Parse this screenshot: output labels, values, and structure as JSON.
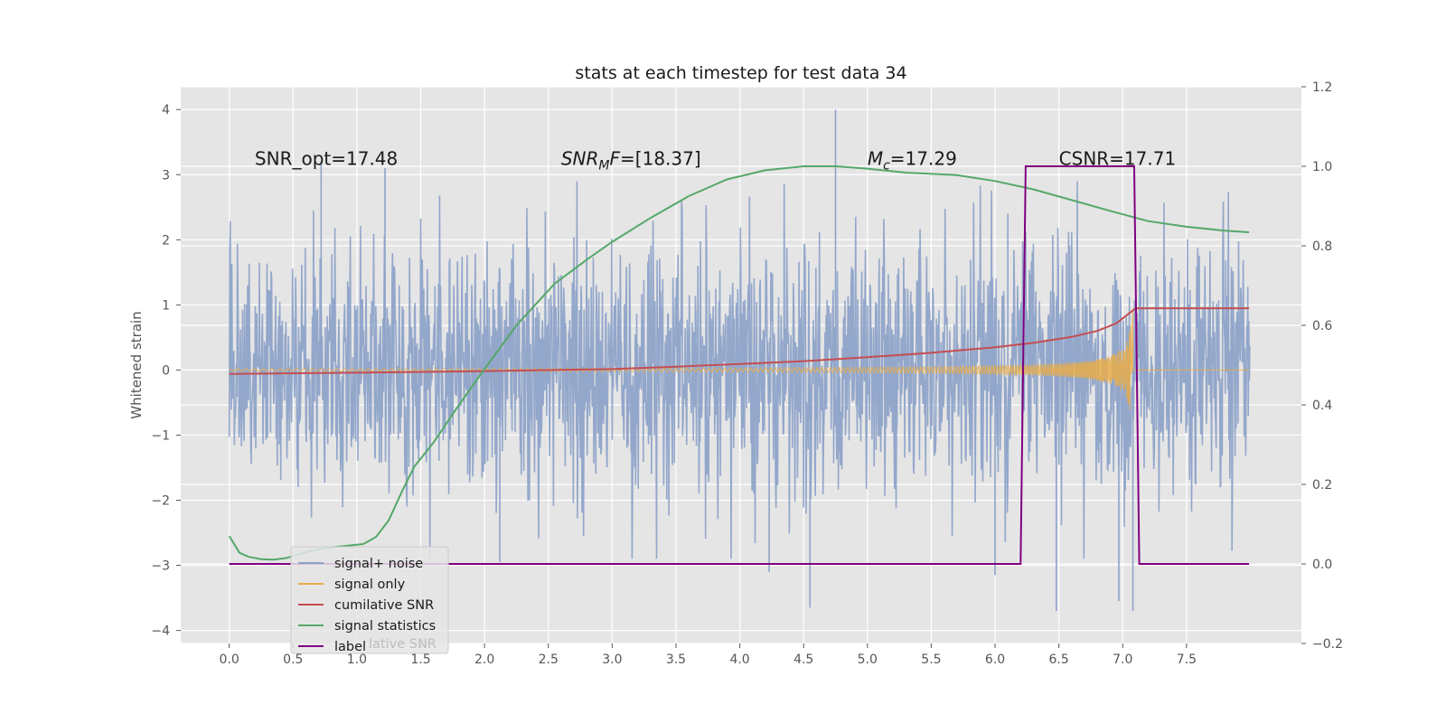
{
  "chart_data": {
    "type": "line",
    "title": "stats at each timestep for test data 34",
    "xlabel": "",
    "ylabel": "Whitened strain",
    "xlim": [
      -0.38,
      8.4
    ],
    "ylim": [
      -4.2,
      4.35
    ],
    "y2lim": [
      -0.2,
      1.2
    ],
    "xticks": [
      "0.0",
      "0.5",
      "1.0",
      "1.5",
      "2.0",
      "2.5",
      "3.0",
      "3.5",
      "4.0",
      "4.5",
      "5.0",
      "5.5",
      "6.0",
      "6.5",
      "7.0",
      "7.5"
    ],
    "yticks": [
      "4",
      "3",
      "2",
      "1",
      "0",
      "−1",
      "−2",
      "−3",
      "−4"
    ],
    "y2ticks": [
      "1.2",
      "1.0",
      "0.8",
      "0.6",
      "0.4",
      "0.2",
      "0.0",
      "−0.2"
    ],
    "grid": true,
    "legend_position": "lower-left",
    "annotations": [
      {
        "plain": "SNR_opt=17.48",
        "x": 0.2,
        "y": 3.25
      },
      {
        "base": "SNR",
        "sub": "M",
        "rest": "F=[18.37]",
        "x": 2.6,
        "y": 3.25
      },
      {
        "base": "M",
        "sub": "c",
        "rest": "=17.29",
        "x": 5.0,
        "y": 3.25
      },
      {
        "plain": "CSNR=17.71",
        "x": 6.5,
        "y": 3.25
      }
    ],
    "series": [
      {
        "name": "signal+ noise",
        "color": "#8ea3c9",
        "axis": "left",
        "approx": "gaussian noise, std ~0.95, t 0 to 8",
        "spikes": [
          [
            0.72,
            3.2
          ],
          [
            1.22,
            3.1
          ],
          [
            4.75,
            4.0
          ],
          [
            6.1,
            2.4
          ],
          [
            4.23,
            -3.1
          ],
          [
            4.55,
            -3.65
          ],
          [
            6.48,
            -3.7
          ],
          [
            7.08,
            -3.7
          ],
          [
            6.0,
            -3.15
          ],
          [
            2.12,
            -2.95
          ],
          [
            6.97,
            -3.55
          ]
        ]
      },
      {
        "name": "signal only",
        "color": "#e8ad4a",
        "axis": "left",
        "approx": "chirp, amplitude growing to ~3.1 at t 7.08, zero after"
      },
      {
        "name": "cumilative SNR",
        "color": "#c44e52",
        "axis": "right",
        "x": [
          0.0,
          1.0,
          2.0,
          3.0,
          3.5,
          4.0,
          4.5,
          5.0,
          5.5,
          6.0,
          6.3,
          6.6,
          6.8,
          6.95,
          7.05,
          7.1,
          7.99
        ],
        "y": [
          0.478,
          0.481,
          0.485,
          0.49,
          0.496,
          0.503,
          0.51,
          0.52,
          0.531,
          0.545,
          0.556,
          0.571,
          0.586,
          0.605,
          0.63,
          0.643,
          0.643
        ]
      },
      {
        "name": "signal statistics",
        "color": "#55a868",
        "axis": "right",
        "x": [
          0.0,
          0.08,
          0.15,
          0.25,
          0.35,
          0.45,
          0.6,
          0.75,
          0.9,
          1.05,
          1.15,
          1.25,
          1.35,
          1.45,
          1.6,
          1.8,
          2.0,
          2.25,
          2.55,
          2.8,
          3.0,
          3.3,
          3.6,
          3.9,
          4.2,
          4.5,
          4.75,
          5.0,
          5.3,
          5.7,
          6.0,
          6.3,
          6.6,
          6.9,
          7.2,
          7.5,
          7.8,
          7.99
        ],
        "y": [
          0.07,
          0.028,
          0.018,
          0.012,
          0.011,
          0.015,
          0.03,
          0.04,
          0.045,
          0.05,
          0.068,
          0.11,
          0.18,
          0.245,
          0.305,
          0.4,
          0.49,
          0.6,
          0.705,
          0.765,
          0.81,
          0.87,
          0.925,
          0.967,
          0.99,
          1.0,
          1.0,
          0.994,
          0.984,
          0.978,
          0.963,
          0.942,
          0.915,
          0.888,
          0.862,
          0.848,
          0.838,
          0.834
        ]
      },
      {
        "name": "label",
        "color": "#800080",
        "axis": "right",
        "x": [
          0.0,
          6.2,
          6.24,
          7.09,
          7.13,
          7.99
        ],
        "y": [
          0.0,
          0.0,
          1.0,
          1.0,
          0.0,
          0.0
        ]
      }
    ],
    "legend_overlap_text": "lative SNR"
  }
}
